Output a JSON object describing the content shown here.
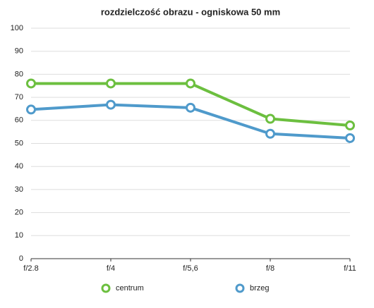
{
  "chart_data": {
    "type": "line",
    "title": "rozdzielczość obrazu - ogniskowa 50 mm",
    "categories": [
      "f/2.8",
      "f/4",
      "f/5,6",
      "f/8",
      "f/11"
    ],
    "series": [
      {
        "name": "centrum",
        "color": "#6cbf3f",
        "values": [
          76,
          76,
          76,
          60.7,
          57.8
        ]
      },
      {
        "name": "brzeg",
        "color": "#4f9acb",
        "values": [
          64.7,
          66.8,
          65.5,
          54.2,
          52.3
        ]
      }
    ],
    "ylim": [
      0,
      100
    ],
    "yticks": [
      0,
      10,
      20,
      30,
      40,
      50,
      60,
      70,
      80,
      90,
      100
    ],
    "grid": true
  }
}
